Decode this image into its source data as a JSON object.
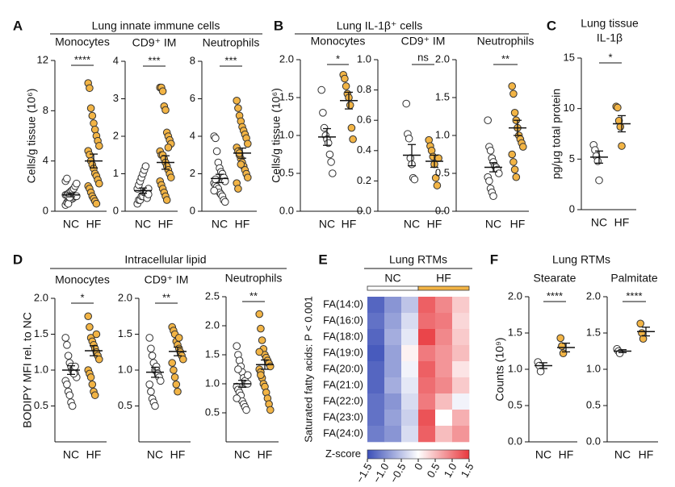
{
  "sections": [
    {
      "letter": "A",
      "title": "Lung innate immune cells"
    },
    {
      "letter": "B",
      "title": "Lung IL-1β⁺ cells"
    },
    {
      "letter": "C",
      "title_lines": [
        "Lung tissue",
        "IL-1β"
      ]
    },
    {
      "letter": "D",
      "title": "Intracellular lipid"
    },
    {
      "letter": "E"
    },
    {
      "letter": "F",
      "title": "Lung RTMs"
    }
  ],
  "chart_data": [
    {
      "type": "strip",
      "title": "Monocytes",
      "ylabel": "Cells/g tissue (10⁶)",
      "ylim": [
        0,
        12
      ],
      "yticks": [
        0,
        4,
        8,
        12
      ],
      "categories": [
        "NC",
        "HF"
      ],
      "colors": [
        "#ffffff",
        "#f2b445"
      ],
      "values": [
        [
          0.5,
          0.7,
          0.8,
          0.9,
          1.0,
          1.0,
          1.1,
          1.2,
          1.2,
          1.3,
          1.3,
          1.4,
          1.5,
          1.6,
          1.7,
          1.8,
          2.0,
          2.2,
          2.4,
          2.6,
          0.6,
          1.1
        ],
        [
          10.2,
          9.8,
          8.2,
          7.6,
          7.0,
          6.5,
          6.0,
          5.6,
          5.2,
          4.8,
          4.5,
          4.0,
          3.7,
          3.4,
          3.0,
          2.8,
          2.5,
          2.2,
          2.0,
          1.8,
          1.5,
          1.2,
          1.0,
          0.8,
          0.6
        ]
      ],
      "means": [
        1.3,
        4.0
      ],
      "sems": [
        0.15,
        0.55
      ],
      "significance": "****"
    },
    {
      "type": "strip",
      "title": "CD9⁺ IM",
      "ylim": [
        0,
        4
      ],
      "yticks": [
        0,
        1,
        2,
        3,
        4
      ],
      "categories": [
        "NC",
        "HF"
      ],
      "colors": [
        "#ffffff",
        "#f2b445"
      ],
      "values": [
        [
          0.2,
          0.3,
          0.3,
          0.4,
          0.4,
          0.5,
          0.5,
          0.5,
          0.6,
          0.6,
          0.7,
          0.8,
          0.9,
          1.0,
          1.1,
          1.2,
          0.35,
          0.45
        ],
        [
          3.3,
          3.3,
          3.2,
          2.8,
          2.7,
          2.1,
          2.0,
          1.9,
          1.8,
          1.6,
          1.5,
          1.5,
          1.4,
          1.3,
          1.2,
          1.1,
          1.0,
          0.9,
          0.8,
          0.7,
          0.6,
          0.5,
          0.4,
          0.3,
          1.7
        ]
      ],
      "means": [
        0.55,
        1.3
      ],
      "sems": [
        0.07,
        0.18
      ],
      "significance": "***"
    },
    {
      "type": "strip",
      "title": "Neutrophils",
      "ylim": [
        0,
        8
      ],
      "yticks": [
        0,
        2,
        4,
        6,
        8
      ],
      "categories": [
        "NC",
        "HF"
      ],
      "colors": [
        "#ffffff",
        "#f2b445"
      ],
      "values": [
        [
          4.0,
          3.9,
          3.2,
          2.6,
          2.3,
          2.1,
          2.0,
          1.8,
          1.6,
          1.5,
          1.4,
          1.3,
          1.2,
          1.0,
          0.9,
          0.8,
          0.6,
          0.5,
          1.1,
          1.7
        ],
        [
          5.9,
          5.5,
          5.1,
          4.8,
          4.5,
          4.3,
          4.1,
          3.9,
          3.6,
          3.4,
          3.2,
          3.0,
          2.8,
          2.6,
          2.4,
          2.2,
          2.0,
          1.8,
          1.5,
          1.2,
          3.1,
          2.5
        ]
      ],
      "means": [
        1.75,
        3.1
      ],
      "sems": [
        0.22,
        0.27
      ],
      "significance": "***"
    },
    {
      "type": "strip",
      "title": "Monocytes",
      "ylabel": "Cells/g tissue (10⁶)",
      "ylim": [
        0,
        2
      ],
      "yticks": [
        {
          "value": 0,
          "label": "0.0"
        },
        0.5,
        {
          "value": 1,
          "label": "1.0"
        },
        1.5,
        {
          "value": 2,
          "label": "2.0"
        }
      ],
      "categories": [
        "NC",
        "HF"
      ],
      "colors": [
        "#ffffff",
        "#f2b445"
      ],
      "values": [
        [
          1.6,
          1.3,
          1.1,
          1.0,
          0.95,
          0.9,
          0.75,
          0.65,
          0.5
        ],
        [
          1.8,
          1.75,
          1.65,
          1.55,
          1.5,
          1.4,
          1.1,
          0.95
        ]
      ],
      "means": [
        0.98,
        1.46
      ],
      "sems": [
        0.11,
        0.11
      ],
      "significance": "*"
    },
    {
      "type": "strip",
      "title": "CD9⁺ IM",
      "ylim": [
        0,
        1
      ],
      "yticks": [
        {
          "value": 0,
          "label": "0.0"
        },
        0.2,
        0.4,
        0.6,
        0.8,
        {
          "value": 1,
          "label": "1.0"
        }
      ],
      "categories": [
        "NC",
        "HF"
      ],
      "colors": [
        "#ffffff",
        "#f2b445"
      ],
      "values": [
        [
          0.71,
          0.51,
          0.48,
          0.35,
          0.31,
          0.22,
          0.21
        ],
        [
          0.47,
          0.43,
          0.4,
          0.36,
          0.31,
          0.22,
          0.17,
          0.35
        ]
      ],
      "means": [
        0.37,
        0.33
      ],
      "sems": [
        0.07,
        0.04
      ],
      "significance": "ns"
    },
    {
      "type": "strip",
      "title": "Neutrophils",
      "ylim": [
        0,
        2
      ],
      "yticks": [
        {
          "value": 0,
          "label": "0.0"
        },
        0.5,
        {
          "value": 1,
          "label": "1.0"
        },
        1.5,
        {
          "value": 2,
          "label": "2.0"
        }
      ],
      "categories": [
        "NC",
        "HF"
      ],
      "colors": [
        "#ffffff",
        "#f2b445"
      ],
      "values": [
        [
          1.2,
          0.85,
          0.8,
          0.7,
          0.65,
          0.6,
          0.58,
          0.55,
          0.5,
          0.45,
          0.4,
          0.3,
          0.25,
          0.2
        ],
        [
          1.65,
          1.55,
          1.3,
          1.2,
          1.1,
          1.0,
          0.95,
          0.9,
          0.85,
          0.75,
          0.65,
          0.55,
          0.45
        ]
      ],
      "means": [
        0.58,
        1.1
      ],
      "sems": [
        0.06,
        0.1
      ],
      "significance": "**"
    },
    {
      "type": "strip",
      "ylabel": "pg/μg total protein",
      "ylim": [
        0,
        15
      ],
      "yticks": [
        0,
        5,
        10,
        15
      ],
      "categories": [
        "NC",
        "HF"
      ],
      "colors": [
        "#ffffff",
        "#f2b445"
      ],
      "values": [
        [
          6.4,
          5.9,
          5.3,
          4.8,
          2.9
        ],
        [
          10.2,
          10.1,
          8.8,
          8.2,
          6.3
        ]
      ],
      "means": [
        5.2,
        8.5
      ],
      "sems": [
        0.6,
        0.8
      ],
      "significance": "*"
    },
    {
      "type": "strip",
      "title": "Monocytes",
      "ylabel": "BODIPY MFI rel. to NC",
      "ylim": [
        0,
        2
      ],
      "yticks": [
        0.5,
        {
          "value": 1,
          "label": "1.0"
        },
        1.5,
        {
          "value": 2,
          "label": "2.0"
        }
      ],
      "categories": [
        "NC",
        "HF"
      ],
      "colors": [
        "#ffffff",
        "#f2b445"
      ],
      "values": [
        [
          1.45,
          1.35,
          1.2,
          1.1,
          1.05,
          1.0,
          1.0,
          0.95,
          0.9,
          0.85,
          0.8,
          0.7,
          0.65,
          0.55,
          0.5,
          0.95,
          1.05
        ],
        [
          1.75,
          1.6,
          1.45,
          1.4,
          1.35,
          1.3,
          1.25,
          1.2,
          1.15,
          1.0,
          0.95,
          0.9,
          0.8,
          0.7,
          0.65,
          1.5
        ]
      ],
      "means": [
        1.0,
        1.27
      ],
      "sems": [
        0.06,
        0.07
      ],
      "significance": "*"
    },
    {
      "type": "strip",
      "title": "CD9⁺ IM",
      "ylim": [
        0,
        2
      ],
      "yticks": [
        0.5,
        {
          "value": 1,
          "label": "1.0"
        },
        1.5,
        {
          "value": 2,
          "label": "2.0"
        }
      ],
      "categories": [
        "NC",
        "HF"
      ],
      "colors": [
        "#ffffff",
        "#f2b445"
      ],
      "values": [
        [
          1.45,
          1.3,
          1.2,
          1.1,
          1.0,
          1.0,
          0.95,
          0.9,
          0.85,
          0.8,
          0.7,
          0.6,
          0.55,
          0.5,
          1.05
        ],
        [
          1.6,
          1.55,
          1.5,
          1.4,
          1.35,
          1.3,
          1.25,
          1.2,
          1.15,
          1.1,
          1.0,
          0.9,
          0.8,
          0.7,
          1.45
        ]
      ],
      "means": [
        0.97,
        1.26
      ],
      "sems": [
        0.07,
        0.06
      ],
      "significance": "**"
    },
    {
      "type": "strip",
      "title": "Neutrophils",
      "ylim": [
        0,
        2.5
      ],
      "yticks": [
        0.5,
        {
          "value": 1,
          "label": "1.0"
        },
        1.5,
        {
          "value": 2,
          "label": "2.0"
        },
        2.5
      ],
      "categories": [
        "NC",
        "HF"
      ],
      "colors": [
        "#ffffff",
        "#f2b445"
      ],
      "values": [
        [
          1.65,
          1.5,
          1.4,
          1.3,
          1.2,
          1.1,
          1.05,
          1.0,
          1.0,
          0.95,
          0.9,
          0.85,
          0.8,
          0.7,
          0.65,
          0.6,
          0.55,
          1.15,
          0.75,
          1.25
        ],
        [
          2.2,
          1.95,
          1.75,
          1.6,
          1.5,
          1.45,
          1.4,
          1.35,
          1.3,
          1.25,
          1.2,
          1.1,
          1.0,
          0.95,
          0.85,
          0.75,
          0.65,
          0.55,
          1.55,
          1.15
        ]
      ],
      "means": [
        1.0,
        1.33
      ],
      "sems": [
        0.06,
        0.08
      ],
      "significance": "**"
    },
    {
      "type": "heatmap",
      "title": "Lung RTMs",
      "groups": [
        "NC",
        "HF"
      ],
      "group_colors": [
        "#ffffff",
        "#f2b445"
      ],
      "side_label": "Saturated fatty acids: P < 0.001",
      "rows": [
        "FA(14:0)",
        "FA(16:0)",
        "FA(18:0)",
        "FA(19:0)",
        "FA(20:0)",
        "FA(21:0)",
        "FA(22:0)",
        "FA(23:0)",
        "FA(24:0)"
      ],
      "values": [
        [
          -1.3,
          -0.9,
          -0.5,
          1.2,
          0.9,
          0.4
        ],
        [
          -1.2,
          -0.8,
          -0.3,
          1.1,
          1.0,
          0.3
        ],
        [
          -1.3,
          -0.7,
          -0.2,
          1.4,
          0.9,
          0.4
        ],
        [
          -1.4,
          -0.8,
          0.1,
          1.0,
          0.8,
          0.5
        ],
        [
          -1.3,
          -0.8,
          -0.1,
          1.2,
          0.8,
          0.2
        ],
        [
          -1.3,
          -0.7,
          -0.2,
          1.1,
          0.9,
          0.4
        ],
        [
          -1.2,
          -0.9,
          -0.3,
          1.0,
          0.5,
          -0.1
        ],
        [
          -1.2,
          -0.8,
          -0.4,
          1.3,
          0.0,
          0.6
        ],
        [
          -1.1,
          -0.9,
          -0.3,
          1.2,
          0.5,
          0.8
        ]
      ],
      "colormap": [
        "#3b4fb8",
        "#ffffff",
        "#e8383d"
      ],
      "colorbar_label": "Z-score",
      "zlim": [
        -1.5,
        1.5
      ],
      "zticks": [
        {
          "value": -1.5,
          "label": "−1.5"
        },
        {
          "value": -1,
          "label": "−1.0"
        },
        {
          "value": -0.5,
          "label": "−0.5"
        },
        0,
        0.5,
        {
          "value": 1,
          "label": "1.0"
        },
        1.5
      ]
    },
    {
      "type": "strip",
      "title": "Stearate",
      "ylabel": "Counts (10⁹)",
      "ylim": [
        0,
        2
      ],
      "yticks": [
        {
          "value": 0,
          "label": "0.0"
        },
        0.5,
        {
          "value": 1,
          "label": "1.0"
        },
        1.5,
        {
          "value": 2,
          "label": "2.0"
        }
      ],
      "categories": [
        "NC",
        "HF"
      ],
      "colors": [
        "#ffffff",
        "#f2b445"
      ],
      "values": [
        [
          1.1,
          1.05,
          0.97
        ],
        [
          1.43,
          1.32,
          1.22
        ]
      ],
      "means": [
        1.05,
        1.3
      ],
      "sems": [
        0.04,
        0.06
      ],
      "significance": "****"
    },
    {
      "type": "strip",
      "title": "Palmitate",
      "ylim": [
        0,
        2
      ],
      "yticks": [
        {
          "value": 0,
          "label": "0.0"
        },
        0.5,
        {
          "value": 1,
          "label": "1.0"
        },
        1.5,
        {
          "value": 2,
          "label": "2.0"
        }
      ],
      "categories": [
        "NC",
        "HF"
      ],
      "colors": [
        "#ffffff",
        "#f2b445"
      ],
      "values": [
        [
          1.28,
          1.25,
          1.22
        ],
        [
          1.63,
          1.5,
          1.42
        ]
      ],
      "means": [
        1.25,
        1.52
      ],
      "sems": [
        0.02,
        0.06
      ],
      "significance": "****"
    }
  ]
}
